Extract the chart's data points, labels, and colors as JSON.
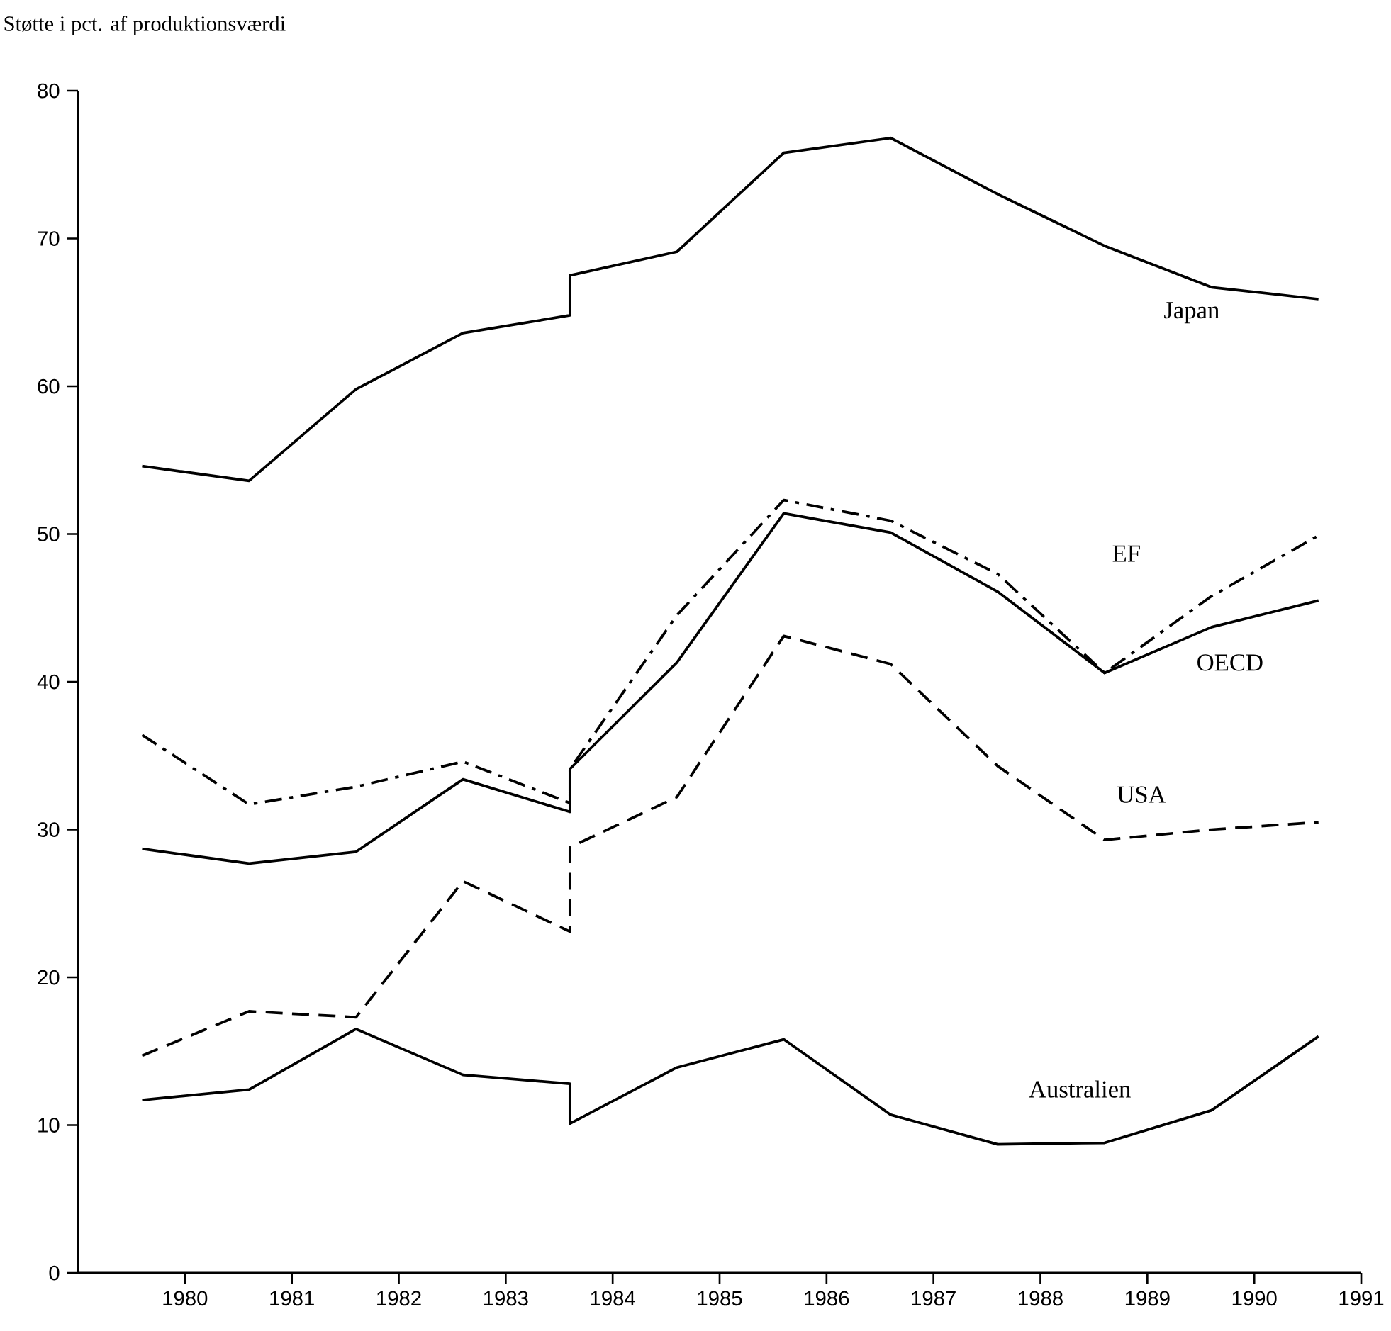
{
  "chart_data": {
    "type": "line",
    "ylabel": "Støtte i pct. af produktionsværdi",
    "x": [
      1979.6,
      1980.6,
      1981.6,
      1982.6,
      1983.6,
      1983.6,
      1984.6,
      1985.6,
      1986.6,
      1987.6,
      1988.6,
      1989.6,
      1990.6
    ],
    "series": [
      {
        "name": "Japan",
        "color": "#000000",
        "line_style": "solid",
        "values": [
          54.6,
          53.6,
          59.8,
          63.6,
          64.8,
          67.5,
          69.1,
          75.8,
          76.8,
          73.0,
          69.5,
          66.7,
          65.9
        ]
      },
      {
        "name": "EF",
        "color": "#000000",
        "line_style": "dashdot",
        "values": [
          36.4,
          31.7,
          32.9,
          34.6,
          31.8,
          34.1,
          44.5,
          52.3,
          50.9,
          47.3,
          40.6,
          45.8,
          49.9
        ]
      },
      {
        "name": "OECD",
        "color": "#000000",
        "line_style": "solid",
        "values": [
          28.7,
          27.7,
          28.5,
          33.4,
          31.2,
          34.1,
          41.3,
          51.4,
          50.1,
          46.1,
          40.6,
          43.7,
          45.5
        ]
      },
      {
        "name": "USA",
        "color": "#000000",
        "line_style": "dashed",
        "values": [
          14.7,
          17.7,
          17.3,
          26.5,
          23.1,
          28.8,
          32.2,
          43.1,
          41.2,
          34.3,
          29.3,
          30.0,
          30.5
        ]
      },
      {
        "name": "Australien",
        "color": "#000000",
        "line_style": "solid",
        "values": [
          11.7,
          12.4,
          16.5,
          13.4,
          12.8,
          10.1,
          13.9,
          15.8,
          10.7,
          8.7,
          8.8,
          11.0,
          16.0
        ]
      }
    ],
    "xlim": [
      1979,
      1991
    ],
    "xticks": [
      1980,
      1981,
      1982,
      1983,
      1984,
      1985,
      1986,
      1987,
      1988,
      1989,
      1990,
      1991
    ],
    "ylim": [
      0,
      80
    ],
    "yticks": [
      0,
      10,
      20,
      30,
      40,
      50,
      60,
      70,
      80
    ]
  }
}
